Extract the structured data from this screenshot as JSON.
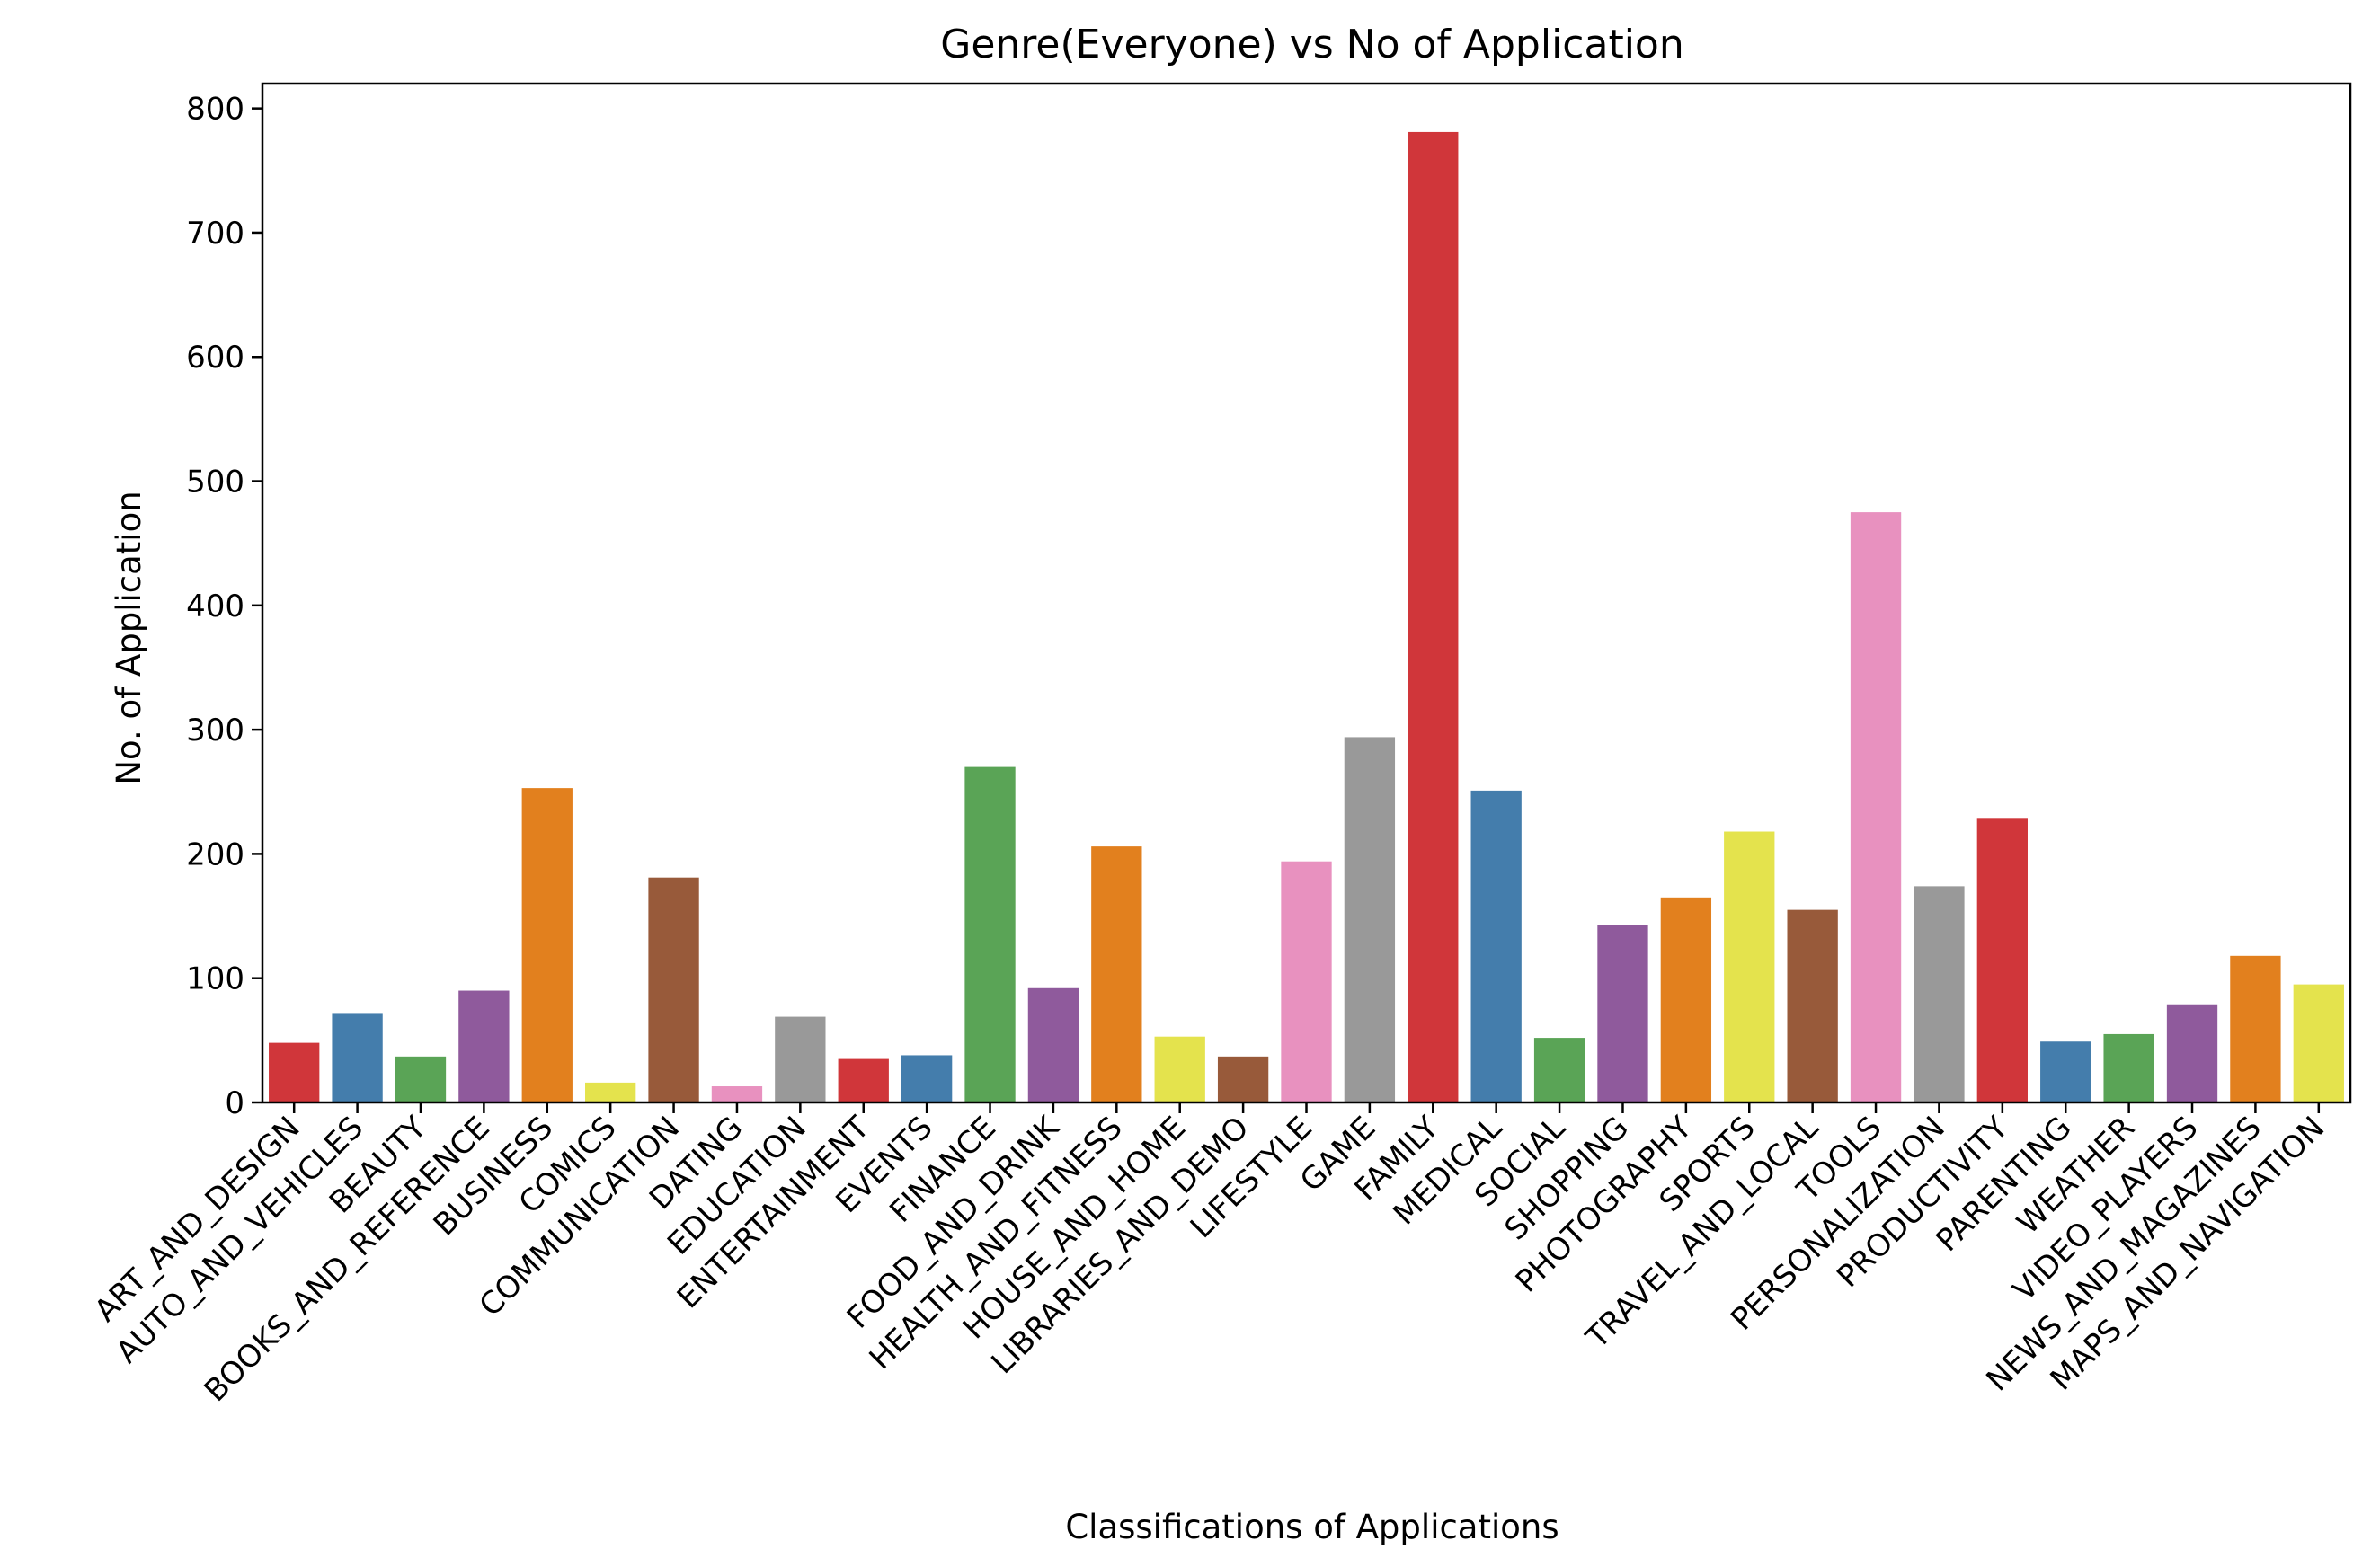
{
  "chart_data": {
    "type": "bar",
    "title": "Genre(Everyone) vs No of Application",
    "xlabel": "Classifications of Applications",
    "ylabel": "No. of Application",
    "ylim": [
      0,
      820
    ],
    "yticks": [
      0,
      100,
      200,
      300,
      400,
      500,
      600,
      700,
      800
    ],
    "categories": [
      "ART_AND_DESIGN",
      "AUTO_AND_VEHICLES",
      "BEAUTY",
      "BOOKS_AND_REFERENCE",
      "BUSINESS",
      "COMICS",
      "COMMUNICATION",
      "DATING",
      "EDUCATION",
      "ENTERTAINMENT",
      "EVENTS",
      "FINANCE",
      "FOOD_AND_DRINK",
      "HEALTH_AND_FITNESS",
      "HOUSE_AND_HOME",
      "LIBRARIES_AND_DEMO",
      "LIFESTYLE",
      "GAME",
      "FAMILY",
      "MEDICAL",
      "SOCIAL",
      "SHOPPING",
      "PHOTOGRAPHY",
      "SPORTS",
      "TRAVEL_AND_LOCAL",
      "TOOLS",
      "PERSONALIZATION",
      "PRODUCTIVITY",
      "PARENTING",
      "WEATHER",
      "VIDEO_PLAYERS",
      "NEWS_AND_MAGAZINES",
      "MAPS_AND_NAVIGATION"
    ],
    "values": [
      48,
      72,
      37,
      90,
      253,
      16,
      181,
      13,
      69,
      35,
      38,
      270,
      92,
      206,
      53,
      37,
      194,
      294,
      781,
      251,
      52,
      143,
      165,
      218,
      155,
      475,
      174,
      229,
      49,
      55,
      79,
      118,
      95
    ],
    "colors": [
      "#d0363a",
      "#447dac",
      "#5aa456",
      "#8f5a9c",
      "#e2801e",
      "#e4e34d",
      "#985a3a",
      "#e891bf",
      "#999999",
      "#d0363a",
      "#447dac",
      "#5aa456",
      "#8f5a9c",
      "#e2801e",
      "#e4e34d",
      "#985a3a",
      "#e891bf",
      "#999999",
      "#d0363a",
      "#447dac",
      "#5aa456",
      "#8f5a9c",
      "#e2801e",
      "#e4e34d",
      "#985a3a",
      "#e891bf",
      "#999999",
      "#d0363a",
      "#447dac",
      "#5aa456",
      "#8f5a9c",
      "#e2801e",
      "#e4e34d"
    ],
    "grid": false,
    "legend": "none"
  }
}
